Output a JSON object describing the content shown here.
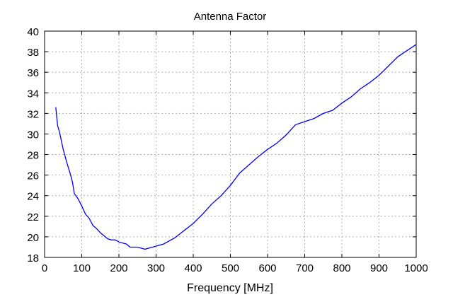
{
  "chart_data": {
    "type": "line",
    "title": "Antenna Factor",
    "xlabel": "Frequency [MHz]",
    "ylabel": "",
    "xlim": [
      0,
      1000
    ],
    "ylim": [
      18,
      40
    ],
    "xticks": [
      0,
      100,
      200,
      300,
      400,
      500,
      600,
      700,
      800,
      900,
      1000
    ],
    "yticks": [
      18,
      20,
      22,
      24,
      26,
      28,
      30,
      32,
      34,
      36,
      38,
      40
    ],
    "grid": true,
    "series": [
      {
        "name": "Antenna Factor",
        "color": "#0000ff",
        "x": [
          30,
          35,
          40,
          50,
          60,
          70,
          75,
          80,
          90,
          100,
          110,
          120,
          130,
          140,
          150,
          160,
          170,
          180,
          190,
          200,
          220,
          230,
          250,
          270,
          290,
          300,
          320,
          350,
          375,
          400,
          425,
          450,
          475,
          500,
          525,
          550,
          575,
          600,
          625,
          650,
          675,
          700,
          725,
          750,
          775,
          800,
          825,
          850,
          875,
          900,
          925,
          950,
          975,
          1000
        ],
        "y": [
          32.6,
          30.8,
          30.2,
          28.5,
          27.2,
          26.0,
          25.3,
          24.2,
          23.7,
          23.0,
          22.2,
          21.8,
          21.1,
          20.8,
          20.4,
          20.1,
          19.8,
          19.7,
          19.7,
          19.5,
          19.3,
          19.0,
          19.0,
          18.8,
          19.0,
          19.1,
          19.3,
          19.9,
          20.6,
          21.3,
          22.2,
          23.2,
          24.0,
          25.0,
          26.2,
          27.0,
          27.8,
          28.5,
          29.1,
          29.9,
          30.9,
          31.2,
          31.5,
          32.0,
          32.3,
          33.0,
          33.6,
          34.4,
          35.0,
          35.7,
          36.6,
          37.5,
          38.1,
          38.7
        ]
      }
    ]
  }
}
